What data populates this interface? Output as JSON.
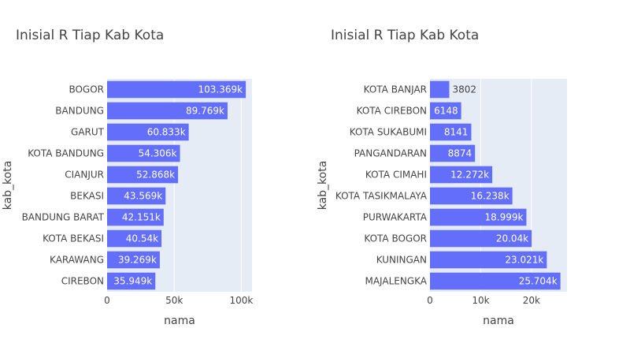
{
  "chart_data": [
    {
      "type": "bar",
      "orientation": "horizontal",
      "title": "Inisial R Tiap Kab Kota",
      "xlabel": "nama",
      "ylabel": "kab_kota",
      "categories": [
        "BOGOR",
        "BANDUNG",
        "GARUT",
        "KOTA BANDUNG",
        "CIANJUR",
        "BEKASI",
        "BANDUNG BARAT",
        "KOTA BEKASI",
        "KARAWANG",
        "CIREBON"
      ],
      "values": [
        103369,
        89769,
        60833,
        54306,
        52868,
        43569,
        42151,
        40540,
        39269,
        35949
      ],
      "value_labels": [
        "103.369k",
        "89.769k",
        "60.833k",
        "54.306k",
        "52.868k",
        "43.569k",
        "42.151k",
        "40.54k",
        "39.269k",
        "35.949k"
      ],
      "xlim": [
        0,
        108000
      ],
      "xticks": [
        0,
        50000,
        100000
      ],
      "xtick_labels": [
        "0",
        "50k",
        "100k"
      ],
      "grid": true,
      "bar_color": "#636efa",
      "plot_bg": "#e5ecf6"
    },
    {
      "type": "bar",
      "orientation": "horizontal",
      "title": "Inisial R Tiap Kab Kota",
      "xlabel": "nama",
      "ylabel": "kab_kota",
      "categories": [
        "KOTA BANJAR",
        "KOTA CIREBON",
        "KOTA SUKABUMI",
        "PANGANDARAN",
        "KOTA CIMAHI",
        "KOTA TASIKMALAYA",
        "PURWAKARTA",
        "KOTA BOGOR",
        "KUNINGAN",
        "MAJALENGKA"
      ],
      "values": [
        3802,
        6148,
        8141,
        8874,
        12272,
        16238,
        18999,
        20040,
        23021,
        25704
      ],
      "value_labels": [
        "3802",
        "6148",
        "8141",
        "8874",
        "12.272k",
        "16.238k",
        "18.999k",
        "20.04k",
        "23.021k",
        "25.704k"
      ],
      "xlim": [
        0,
        27000
      ],
      "xticks": [
        0,
        10000,
        20000
      ],
      "xtick_labels": [
        "0",
        "10k",
        "20k"
      ],
      "grid": true,
      "bar_color": "#636efa",
      "plot_bg": "#e5ecf6"
    }
  ]
}
